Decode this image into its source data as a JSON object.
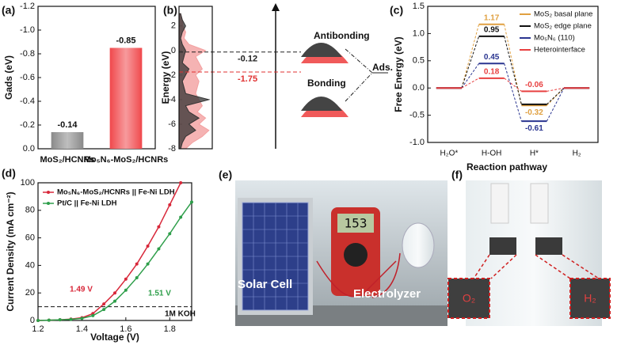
{
  "panel_labels": [
    "(a)",
    "(b)",
    "(c)",
    "(d)",
    "(e)",
    "(f)"
  ],
  "chart_data": [
    {
      "type": "bar",
      "ylabel": "Gads (eV)",
      "categories": [
        "MoS₂/HCNRs",
        "Mo₅N₆-MoS₂/HCNRs"
      ],
      "values": [
        -0.14,
        -0.85
      ],
      "colors": [
        "#8a8a8a",
        "#f0484c"
      ],
      "ylim": [
        0,
        -1.2
      ],
      "yticks": [
        {
          "value": 0,
          "label": "0.0"
        },
        -0.2,
        -0.4,
        -0.6,
        -0.8,
        {
          "value": -1,
          "label": "-1.0"
        },
        -1.2
      ]
    },
    {
      "type": "dos",
      "ylabel": "Energy (eV)",
      "ylim": [
        -8,
        3.6
      ],
      "yticks": [
        2,
        0,
        -2,
        -4,
        -6,
        -8
      ],
      "xlim": [
        0,
        1
      ],
      "energy": [
        3,
        2.5,
        2,
        1.5,
        1,
        0.5,
        0,
        -0.5,
        -1,
        -1.5,
        -2,
        -2.5,
        -3,
        -3.5,
        -4,
        -4.5,
        -5,
        -5.5,
        -6,
        -6.5,
        -7,
        -7.5,
        -8
      ],
      "series": [
        {
          "color": "#f3a0a0",
          "values": [
            0.05,
            0.1,
            0.12,
            0.2,
            0.15,
            0.3,
            0.8,
            0.5,
            0.6,
            0.7,
            0.5,
            0.6,
            0.55,
            0.5,
            0.6,
            0.7,
            0.55,
            0.8,
            0.6,
            0.9,
            0.7,
            0.4,
            0.2
          ]
        },
        {
          "color": "#333333",
          "values": [
            0.05,
            0.1,
            0.2,
            0.1,
            0.05,
            0.1,
            0.2,
            0.15,
            0.1,
            0.3,
            0.2,
            0.1,
            0.15,
            0.2,
            0.9,
            0.2,
            0.3,
            0.6,
            0.3,
            0.5,
            0.2,
            0.1,
            0.05
          ]
        }
      ],
      "levels": [
        {
          "value": -0.12,
          "color": "#222222"
        },
        {
          "value": -1.75,
          "color": "#e03030"
        }
      ],
      "annotations": [
        "Antibonding",
        "Bonding",
        "Ads."
      ]
    },
    {
      "type": "levels",
      "ylabel": "Free Energy (eV)",
      "xlabel": "Reaction pathway",
      "categories": [
        "H₂O*",
        "H-OH",
        "H*",
        "H₂"
      ],
      "ylim": [
        -1,
        1.5
      ],
      "yticks": [
        {
          "value": -1,
          "label": "-1.0"
        },
        -0.5,
        {
          "value": 0,
          "label": "0.0"
        },
        0.5,
        {
          "value": 1,
          "label": "1.0"
        },
        1.5
      ],
      "series": [
        {
          "name": "MoS₂ basal plane",
          "color": "#e0a040",
          "values": [
            0,
            1.17,
            -0.32,
            0
          ],
          "value_labels": [
            null,
            "1.17",
            "-0.32",
            null
          ]
        },
        {
          "name": "MoS₂ edge plane",
          "color": "#111111",
          "values": [
            0,
            0.95,
            -0.3,
            0
          ],
          "value_labels": [
            null,
            "0.95",
            null,
            null
          ]
        },
        {
          "name": "Mo₅N₆ (110)",
          "color": "#2a3590",
          "values": [
            0,
            0.45,
            -0.61,
            0
          ],
          "value_labels": [
            null,
            "0.45",
            "-0.61",
            null
          ]
        },
        {
          "name": "Heterointerface",
          "color": "#e84040",
          "values": [
            0,
            0.18,
            -0.06,
            0
          ],
          "value_labels": [
            null,
            "0.18",
            "-0.06",
            null
          ]
        }
      ]
    },
    {
      "type": "line",
      "xlabel": "Voltage (V)",
      "ylabel": "Current Density (mA cm⁻²)",
      "x": [
        1.2,
        1.25,
        1.3,
        1.35,
        1.4,
        1.45,
        1.5,
        1.55,
        1.6,
        1.65,
        1.7,
        1.75,
        1.8,
        1.85,
        1.9
      ],
      "xlim": [
        1.2,
        1.9
      ],
      "xticks": [
        1.2,
        1.4,
        1.6,
        1.8
      ],
      "ylim": [
        0,
        100
      ],
      "yticks": [
        0,
        20,
        40,
        60,
        80,
        100
      ],
      "legend": "upper left",
      "series": [
        {
          "name": "Mo₅N₆-MoS₂/HCNRs || Fe-Ni LDH",
          "color": "#d8283a",
          "values": [
            0,
            0.2,
            0.5,
            1,
            2,
            5,
            12,
            20,
            30,
            41,
            54,
            68,
            84,
            100,
            null
          ]
        },
        {
          "name": "Pt/C || Fe-Ni LDH",
          "color": "#2e9e4a",
          "values": [
            0,
            0.2,
            0.5,
            0.8,
            1.5,
            3.5,
            8,
            14,
            22,
            31,
            41,
            52,
            63,
            75,
            86
          ]
        }
      ],
      "hline": 10,
      "annotations": [
        "1.49 V",
        "1.51 V",
        "1M KOH"
      ]
    }
  ],
  "photos": {
    "e": [
      "Solar Cell",
      "Electrolyzer"
    ],
    "display": "153",
    "f": [
      "O₂",
      "H₂"
    ]
  }
}
